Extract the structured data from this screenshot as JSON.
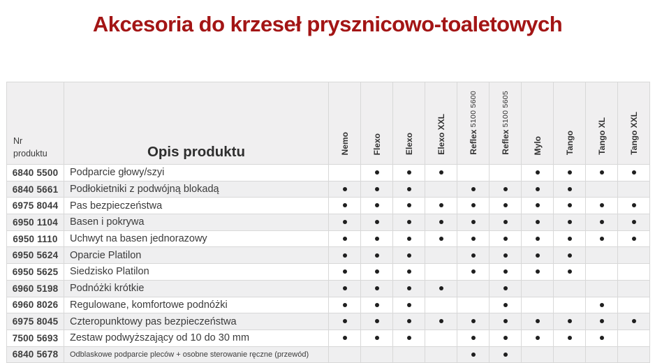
{
  "title": "Akcesoria do krzeseł prysznicowo-toaletowych",
  "colors": {
    "title": "#A31515",
    "dot": "#1f1f1f",
    "stripe": "#efeff0",
    "header_bg": "#f0eff0"
  },
  "table": {
    "header": {
      "nr_label": "Nr produktu",
      "opis_label": "Opis produktu"
    },
    "columns": [
      {
        "name": "Nemo",
        "sub": ""
      },
      {
        "name": "Flexo",
        "sub": ""
      },
      {
        "name": "Elexo",
        "sub": ""
      },
      {
        "name": "Elexo XXL",
        "sub": ""
      },
      {
        "name": "Reflex",
        "sub": "5100 5600"
      },
      {
        "name": "Reflex",
        "sub": "5100 5605"
      },
      {
        "name": "Mylo",
        "sub": ""
      },
      {
        "name": "Tango",
        "sub": ""
      },
      {
        "name": "Tango XL",
        "sub": ""
      },
      {
        "name": "Tango XXL",
        "sub": ""
      }
    ],
    "rows": [
      {
        "nr": "6840 5500",
        "opis": "Podparcie głowy/szyi",
        "dots": [
          0,
          1,
          1,
          1,
          0,
          0,
          1,
          1,
          1,
          1
        ]
      },
      {
        "nr": "6840 5661",
        "opis": "Podłokietniki z podwójną blokadą",
        "dots": [
          1,
          1,
          1,
          0,
          1,
          1,
          1,
          1,
          0,
          0
        ]
      },
      {
        "nr": "6975 8044",
        "opis": "Pas bezpieczeństwa",
        "dots": [
          1,
          1,
          1,
          1,
          1,
          1,
          1,
          1,
          1,
          1
        ]
      },
      {
        "nr": "6950 1104",
        "opis": "Basen i pokrywa",
        "dots": [
          1,
          1,
          1,
          1,
          1,
          1,
          1,
          1,
          1,
          1
        ]
      },
      {
        "nr": "6950 1110",
        "opis": "Uchwyt na basen jednorazowy",
        "dots": [
          1,
          1,
          1,
          1,
          1,
          1,
          1,
          1,
          1,
          1
        ]
      },
      {
        "nr": "6950 5624",
        "opis": "Oparcie Platilon",
        "dots": [
          1,
          1,
          1,
          0,
          1,
          1,
          1,
          1,
          0,
          0
        ]
      },
      {
        "nr": "6950 5625",
        "opis": "Siedzisko Platilon",
        "dots": [
          1,
          1,
          1,
          0,
          1,
          1,
          1,
          1,
          0,
          0
        ]
      },
      {
        "nr": "6960 5198",
        "opis": "Podnóżki krótkie",
        "dots": [
          1,
          1,
          1,
          1,
          0,
          1,
          0,
          0,
          0,
          0
        ]
      },
      {
        "nr": "6960 8026",
        "opis": "Regulowane, komfortowe podnóżki",
        "dots": [
          1,
          1,
          1,
          0,
          0,
          1,
          0,
          0,
          1,
          0
        ]
      },
      {
        "nr": "6975 8045",
        "opis": "Czteropunktowy pas bezpieczeństwa",
        "dots": [
          1,
          1,
          1,
          1,
          1,
          1,
          1,
          1,
          1,
          1
        ]
      },
      {
        "nr": "7500 5693",
        "opis": "Zestaw podwyższający od 10 do 30 mm",
        "dots": [
          1,
          1,
          1,
          0,
          1,
          1,
          1,
          1,
          1,
          0
        ]
      },
      {
        "nr": "6840 5678",
        "opis": "Odblaskowe podparcie pleców + osobne sterowanie ręczne (przewód)",
        "dots": [
          0,
          0,
          0,
          0,
          1,
          1,
          0,
          0,
          0,
          0
        ]
      }
    ]
  }
}
